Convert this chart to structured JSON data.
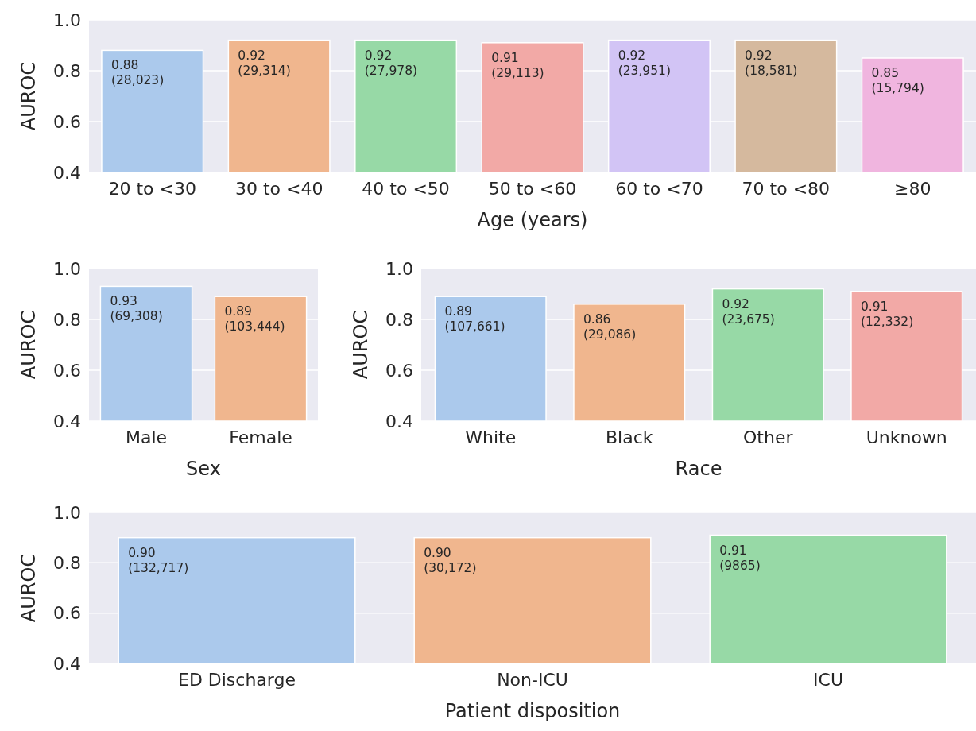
{
  "chart_data": [
    {
      "type": "bar",
      "xlabel": "Age (years)",
      "ylabel": "AUROC",
      "categories": [
        "20 to <30",
        "30 to <40",
        "40 to <50",
        "50 to <60",
        "60 to <70",
        "70 to <80",
        "≥80"
      ],
      "values": [
        0.88,
        0.92,
        0.92,
        0.91,
        0.92,
        0.92,
        0.85
      ],
      "colors": [
        "#abc9ec",
        "#f0b68e",
        "#97d9a6",
        "#f2a9a6",
        "#d2c4f5",
        "#d5b99e",
        "#f0b5df"
      ],
      "value_labels": [
        "0.88\n(28,023)",
        "0.92\n(29,314)",
        "0.92\n(27,978)",
        "0.91\n(29,113)",
        "0.92\n(23,951)",
        "0.92\n(18,581)",
        "0.85\n(15,794)"
      ],
      "ylim": [
        0.4,
        1.0
      ],
      "yticks": [
        {
          "value": 0.4,
          "label": "0.4"
        },
        {
          "value": 0.6,
          "label": "0.6"
        },
        {
          "value": 0.8,
          "label": "0.8"
        },
        {
          "value": 1.0,
          "label": "1.0"
        }
      ],
      "grid": "y"
    },
    {
      "type": "bar",
      "xlabel": "Sex",
      "ylabel": "AUROC",
      "categories": [
        "Male",
        "Female"
      ],
      "values": [
        0.93,
        0.89
      ],
      "colors": [
        "#abc9ec",
        "#f0b68e"
      ],
      "value_labels": [
        "0.93\n(69,308)",
        "0.89\n(103,444)"
      ],
      "ylim": [
        0.4,
        1.0
      ],
      "yticks": [
        {
          "value": 0.4,
          "label": "0.4"
        },
        {
          "value": 0.6,
          "label": "0.6"
        },
        {
          "value": 0.8,
          "label": "0.8"
        },
        {
          "value": 1.0,
          "label": "1.0"
        }
      ],
      "grid": "y"
    },
    {
      "type": "bar",
      "xlabel": "Race",
      "ylabel": "AUROC",
      "categories": [
        "White",
        "Black",
        "Other",
        "Unknown"
      ],
      "values": [
        0.89,
        0.86,
        0.92,
        0.91
      ],
      "colors": [
        "#abc9ec",
        "#f0b68e",
        "#97d9a6",
        "#f2a9a6"
      ],
      "value_labels": [
        "0.89\n(107,661)",
        "0.86\n(29,086)",
        "0.92\n(23,675)",
        "0.91\n(12,332)"
      ],
      "ylim": [
        0.4,
        1.0
      ],
      "yticks": [
        {
          "value": 0.4,
          "label": "0.4"
        },
        {
          "value": 0.6,
          "label": "0.6"
        },
        {
          "value": 0.8,
          "label": "0.8"
        },
        {
          "value": 1.0,
          "label": "1.0"
        }
      ],
      "grid": "y"
    },
    {
      "type": "bar",
      "xlabel": "Patient disposition",
      "ylabel": "AUROC",
      "categories": [
        "ED Discharge",
        "Non-ICU",
        "ICU"
      ],
      "values": [
        0.9,
        0.9,
        0.91
      ],
      "colors": [
        "#abc9ec",
        "#f0b68e",
        "#97d9a6"
      ],
      "value_labels": [
        "0.90\n(132,717)",
        "0.90\n(30,172)",
        "0.91\n(9865)"
      ],
      "ylim": [
        0.4,
        1.0
      ],
      "yticks": [
        {
          "value": 0.4,
          "label": "0.4"
        },
        {
          "value": 0.6,
          "label": "0.6"
        },
        {
          "value": 0.8,
          "label": "0.8"
        },
        {
          "value": 1.0,
          "label": "1.0"
        }
      ],
      "grid": "y"
    }
  ]
}
